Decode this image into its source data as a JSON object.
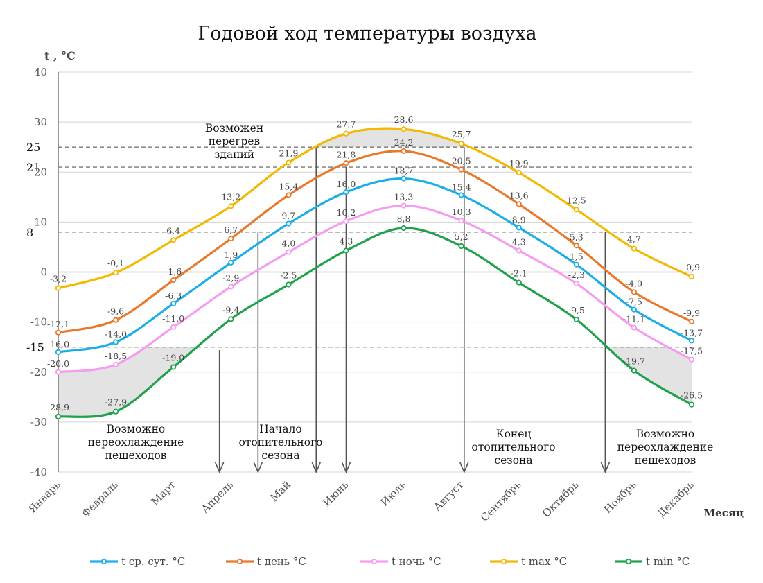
{
  "chart_data": {
    "type": "line",
    "title": "Годовой ход температуры воздуха",
    "ylabel": "t , °C",
    "xlabel": "Месяц",
    "ylim": [
      -40,
      40
    ],
    "yticks": [
      -40,
      -30,
      -20,
      -10,
      0,
      10,
      20,
      30,
      40
    ],
    "grid": true,
    "legend_position": "bottom",
    "categories": [
      "Январь",
      "Февраль",
      "Март",
      "Апрель",
      "Май",
      "Июнь",
      "Июль",
      "Август",
      "Сентябрь",
      "Октябрь",
      "Ноябрь",
      "Декабрь"
    ],
    "series": [
      {
        "name": "t ср. сут. °C",
        "color": "#1aaee6",
        "values": [
          -16.0,
          -14.0,
          -6.3,
          1.9,
          9.7,
          16.0,
          18.7,
          15.4,
          8.9,
          1.5,
          -7.5,
          -13.7
        ],
        "labels": [
          "-16,0",
          "-14,0",
          "-6,3",
          "1,9",
          "9,7",
          "16,0",
          "18,7",
          "15,4",
          "8,9",
          "1,5",
          "-7,5",
          "-13,7"
        ]
      },
      {
        "name": "t день °C",
        "color": "#e8792b",
        "values": [
          -12.1,
          -9.6,
          -1.6,
          6.7,
          15.4,
          21.8,
          24.2,
          20.5,
          13.6,
          5.3,
          -4.0,
          -9.9
        ],
        "labels": [
          "-12,1",
          "-9,6",
          "-1,6",
          "6,7",
          "15,4",
          "21,8",
          "24,2",
          "20,5",
          "13,6",
          "5,3",
          "-4,0",
          "-9,9"
        ]
      },
      {
        "name": "t ночь °C",
        "color": "#f59cf0",
        "values": [
          -20.0,
          -18.5,
          -11.0,
          -2.9,
          4.0,
          10.2,
          13.3,
          10.3,
          4.3,
          -2.3,
          -11.1,
          -17.5
        ],
        "labels": [
          "-20,0",
          "-18,5",
          "-11,0",
          "-2,9",
          "4,0",
          "10,2",
          "13,3",
          "10,3",
          "4,3",
          "-2,3",
          "-11,1",
          "-17,5"
        ]
      },
      {
        "name": "t max °C",
        "color": "#f3b800",
        "values": [
          -3.2,
          -0.1,
          6.4,
          13.2,
          21.9,
          27.7,
          28.6,
          25.7,
          19.9,
          12.5,
          4.7,
          -0.9
        ],
        "labels": [
          "-3,2",
          "-0,1",
          "6,4",
          "13,2",
          "21,9",
          "27,7",
          "28,6",
          "25,7",
          "19,9",
          "12,5",
          "4,7",
          "-0,9"
        ]
      },
      {
        "name": "t min °C",
        "color": "#1fa24b",
        "values": [
          -28.9,
          -27.9,
          -19.0,
          -9.4,
          -2.5,
          4.3,
          8.8,
          5.2,
          -2.1,
          -9.5,
          -19.7,
          -26.5
        ],
        "labels": [
          "-28,9",
          "-27,9",
          "-19,0",
          "-9,4",
          "-2,5",
          "4,3",
          "8,8",
          "5,2",
          "-2,1",
          "-9,5",
          "-19,7",
          "-26,5"
        ]
      }
    ],
    "reference_lines": [
      {
        "value": 25,
        "label": "25"
      },
      {
        "value": 21,
        "label": "21"
      },
      {
        "value": 8,
        "label": "8"
      },
      {
        "value": -15,
        "label": "-15"
      }
    ],
    "annotations": [
      {
        "id": "overheat",
        "lines": [
          "Возможен",
          "перегрев",
          "зданий"
        ]
      },
      {
        "id": "cold-left",
        "lines": [
          "Возможно",
          "переохлаждение",
          "пешеходов"
        ]
      },
      {
        "id": "heat-start",
        "lines": [
          "Начало",
          "отопительного",
          "сезона"
        ]
      },
      {
        "id": "heat-end",
        "lines": [
          "Конец",
          "отопительного",
          "сезона"
        ]
      },
      {
        "id": "cold-right",
        "lines": [
          "Возможно",
          "переохлаждение",
          "пешеходов"
        ]
      }
    ]
  }
}
